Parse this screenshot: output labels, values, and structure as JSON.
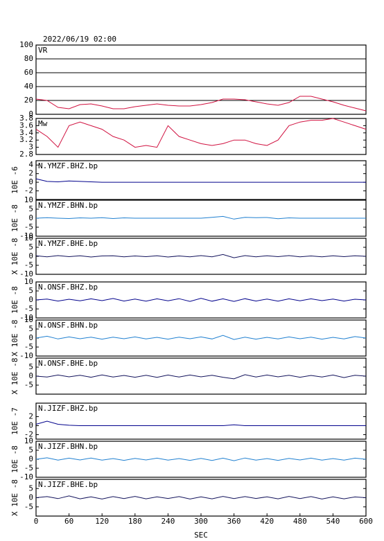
{
  "chart_data": [
    {
      "type": "line",
      "title": "2022/06/19 02:00",
      "xlim": [
        0,
        600
      ],
      "ylim": [
        0,
        100
      ],
      "yticks": [
        0,
        20,
        40,
        60,
        80,
        100
      ],
      "grid": true,
      "x": [
        0,
        20,
        40,
        60,
        80,
        100,
        120,
        140,
        160,
        180,
        200,
        220,
        240,
        260,
        280,
        300,
        320,
        340,
        360,
        380,
        400,
        420,
        440,
        460,
        480,
        500,
        520,
        540,
        560,
        580,
        600
      ],
      "series": [
        {
          "name": "VR",
          "color": "#d0103f",
          "values": [
            22,
            20,
            10,
            8,
            14,
            15,
            12,
            8,
            8,
            11,
            13,
            15,
            13,
            12,
            12,
            14,
            17,
            22,
            22,
            21,
            18,
            15,
            13,
            17,
            26,
            26,
            22,
            18,
            13,
            9,
            5
          ]
        }
      ]
    },
    {
      "type": "line",
      "xlim": [
        0,
        600
      ],
      "ylim": [
        2.8,
        3.8
      ],
      "yticks": [
        2.8,
        3.0,
        3.2,
        3.4,
        3.6,
        3.8
      ],
      "grid": false,
      "x": [
        0,
        20,
        40,
        60,
        80,
        100,
        120,
        140,
        160,
        180,
        200,
        220,
        240,
        260,
        280,
        300,
        320,
        340,
        360,
        380,
        400,
        420,
        440,
        460,
        480,
        500,
        520,
        540,
        560,
        580,
        600
      ],
      "series": [
        {
          "name": "Mw",
          "color": "#d0103f",
          "values": [
            3.5,
            3.3,
            3.0,
            3.6,
            3.7,
            3.6,
            3.5,
            3.3,
            3.2,
            3.0,
            3.05,
            3.0,
            3.6,
            3.3,
            3.2,
            3.1,
            3.05,
            3.1,
            3.2,
            3.2,
            3.1,
            3.05,
            3.2,
            3.6,
            3.7,
            3.75,
            3.75,
            3.8,
            3.7,
            3.6,
            3.5
          ]
        }
      ]
    },
    {
      "type": "line",
      "ylabel": "10E -6",
      "xlim": [
        0,
        600
      ],
      "ylim": [
        -4,
        5
      ],
      "yticks": [
        -2,
        0,
        2,
        4
      ],
      "grid": false,
      "x": [
        0,
        20,
        40,
        60,
        80,
        100,
        120,
        140,
        160,
        180,
        200,
        220,
        240,
        260,
        280,
        300,
        320,
        340,
        360,
        380,
        400,
        420,
        440,
        460,
        480,
        500,
        520,
        540,
        560,
        580,
        600
      ],
      "series": [
        {
          "name": "N.YMZF.BHZ.bp",
          "color": "#00008b",
          "values": [
            0.8,
            0.2,
            0.1,
            0.3,
            0.2,
            0.1,
            0,
            0,
            0,
            0,
            0,
            0,
            0,
            0,
            0,
            0,
            0,
            0,
            0,
            0,
            0,
            0,
            0,
            0,
            0,
            0,
            0,
            0,
            0,
            0,
            0
          ]
        }
      ]
    },
    {
      "type": "line",
      "ylabel": "10E -8",
      "xlim": [
        0,
        600
      ],
      "ylim": [
        -10,
        10
      ],
      "yticks": [
        -10,
        -5,
        0,
        5,
        10
      ],
      "grid": false,
      "x": [
        0,
        20,
        40,
        60,
        80,
        100,
        120,
        140,
        160,
        180,
        200,
        220,
        240,
        260,
        280,
        300,
        320,
        340,
        360,
        380,
        400,
        420,
        440,
        460,
        480,
        500,
        520,
        540,
        560,
        580,
        600
      ],
      "series": [
        {
          "name": "N.YMZF.BHN.bp",
          "color": "#1e7fd0",
          "values": [
            0,
            0.3,
            0,
            -0.2,
            0.2,
            0,
            0.3,
            -0.2,
            0.2,
            0,
            0,
            0,
            0,
            0,
            0,
            0,
            0.5,
            1,
            -0.5,
            0.5,
            0.3,
            0.4,
            -0.3,
            0.2,
            0,
            0,
            0,
            0,
            0,
            0,
            0
          ]
        }
      ]
    },
    {
      "type": "line",
      "ylabel": "X 10E -8",
      "xlim": [
        0,
        600
      ],
      "ylim": [
        -10,
        10
      ],
      "yticks": [
        -10,
        -5,
        0,
        5,
        10
      ],
      "grid": false,
      "x": [
        0,
        20,
        40,
        60,
        80,
        100,
        120,
        140,
        160,
        180,
        200,
        220,
        240,
        260,
        280,
        300,
        320,
        340,
        360,
        380,
        400,
        420,
        440,
        460,
        480,
        500,
        520,
        540,
        560,
        580,
        600
      ],
      "series": [
        {
          "name": "N.YMZF.BHE.bp",
          "color": "#10105a",
          "values": [
            0.3,
            -0.3,
            0.4,
            -0.2,
            0.3,
            -0.4,
            0.2,
            0.3,
            -0.3,
            0.2,
            -0.2,
            0.3,
            -0.4,
            0.2,
            -0.3,
            0.4,
            -0.3,
            1,
            -0.8,
            0.4,
            -0.3,
            0.3,
            -0.2,
            0.4,
            -0.3,
            0.2,
            -0.3,
            0.3,
            -0.2,
            0.3,
            0
          ]
        }
      ]
    },
    {
      "type": "line",
      "ylabel": "10E -8",
      "xlim": [
        0,
        600
      ],
      "ylim": [
        -10,
        10
      ],
      "yticks": [
        -10,
        -5,
        0,
        5,
        10
      ],
      "grid": false,
      "x": [
        0,
        20,
        40,
        60,
        80,
        100,
        120,
        140,
        160,
        180,
        200,
        220,
        240,
        260,
        280,
        300,
        320,
        340,
        360,
        380,
        400,
        420,
        440,
        460,
        480,
        500,
        520,
        540,
        560,
        580,
        600
      ],
      "series": [
        {
          "name": "N.ONSF.BHZ.bp",
          "color": "#00008b",
          "values": [
            0,
            0.5,
            -0.6,
            0.4,
            -0.5,
            0.6,
            -0.4,
            0.8,
            -0.6,
            0.5,
            -0.7,
            0.6,
            -0.5,
            0.7,
            -0.8,
            0.9,
            -0.7,
            0.6,
            -0.8,
            0.7,
            -0.6,
            0.5,
            -0.7,
            0.6,
            -0.5,
            0.6,
            -0.4,
            0.5,
            -0.6,
            0.4,
            0
          ]
        }
      ]
    },
    {
      "type": "line",
      "ylabel": "X 10E -8",
      "xlim": [
        0,
        600
      ],
      "ylim": [
        -10,
        10
      ],
      "yticks": [
        -10,
        -5,
        0,
        5,
        10
      ],
      "grid": false,
      "x": [
        0,
        20,
        40,
        60,
        80,
        100,
        120,
        140,
        160,
        180,
        200,
        220,
        240,
        260,
        280,
        300,
        320,
        340,
        360,
        380,
        400,
        420,
        440,
        460,
        480,
        500,
        520,
        540,
        560,
        580,
        600
      ],
      "series": [
        {
          "name": "N.ONSF.BHN.bp",
          "color": "#1e7fd0",
          "values": [
            0,
            1,
            -0.5,
            0.6,
            -0.4,
            0.5,
            -0.6,
            0.5,
            -0.4,
            0.6,
            -0.5,
            0.4,
            -0.6,
            0.5,
            -0.4,
            0.6,
            -0.5,
            1.5,
            -0.8,
            0.5,
            -0.6,
            0.4,
            -0.5,
            0.6,
            -0.4,
            0.5,
            -0.6,
            0.4,
            -0.5,
            0.8,
            0
          ]
        }
      ]
    },
    {
      "type": "line",
      "ylabel": "X 10E -8",
      "xlim": [
        0,
        600
      ],
      "ylim": [
        -10,
        10
      ],
      "yticks": [
        -5,
        0,
        5
      ],
      "grid": false,
      "x": [
        0,
        20,
        40,
        60,
        80,
        100,
        120,
        140,
        160,
        180,
        200,
        220,
        240,
        260,
        280,
        300,
        320,
        340,
        360,
        380,
        400,
        420,
        440,
        460,
        480,
        500,
        520,
        540,
        560,
        580,
        600
      ],
      "series": [
        {
          "name": "N.ONSF.BHE.bp",
          "color": "#10105a",
          "values": [
            0,
            -0.5,
            0.6,
            -0.4,
            0.5,
            -0.6,
            0.7,
            -0.5,
            0.4,
            -0.6,
            0.5,
            -0.7,
            0.6,
            -0.5,
            0.6,
            -0.4,
            0.5,
            -0.6,
            -1.5,
            0.8,
            -0.5,
            0.6,
            -0.4,
            0.5,
            -0.6,
            0.4,
            -0.5,
            0.6,
            -0.8,
            0.5,
            0
          ]
        }
      ]
    },
    {
      "type": "line",
      "ylabel": "10E -7",
      "xlim": [
        0,
        600
      ],
      "ylim": [
        -3,
        5
      ],
      "yticks": [
        -2,
        0,
        2
      ],
      "grid": false,
      "x": [
        0,
        20,
        40,
        60,
        80,
        100,
        120,
        140,
        160,
        180,
        200,
        220,
        240,
        260,
        280,
        300,
        320,
        340,
        360,
        380,
        400,
        420,
        440,
        460,
        480,
        500,
        520,
        540,
        560,
        580,
        600
      ],
      "series": [
        {
          "name": "N.JIZF.BHZ.bp",
          "color": "#00008b",
          "values": [
            0.3,
            1,
            0.3,
            0.1,
            0,
            0,
            0,
            0,
            0,
            0,
            0,
            0,
            0,
            0,
            0,
            0,
            0,
            0,
            0.2,
            0,
            0,
            0,
            0,
            0,
            0,
            0,
            0,
            0,
            0,
            0,
            0
          ]
        }
      ]
    },
    {
      "type": "line",
      "ylabel": "10E -8",
      "xlim": [
        0,
        600
      ],
      "ylim": [
        -10,
        10
      ],
      "yticks": [
        -10,
        -5,
        0,
        5,
        10
      ],
      "grid": false,
      "x": [
        0,
        20,
        40,
        60,
        80,
        100,
        120,
        140,
        160,
        180,
        200,
        220,
        240,
        260,
        280,
        300,
        320,
        340,
        360,
        380,
        400,
        420,
        440,
        460,
        480,
        500,
        520,
        540,
        560,
        580,
        600
      ],
      "series": [
        {
          "name": "N.JIZF.BHN.bp",
          "color": "#1e7fd0",
          "values": [
            0,
            0.8,
            -0.5,
            0.6,
            -0.4,
            0.7,
            -0.5,
            0.4,
            -0.6,
            0.5,
            -0.4,
            0.6,
            -0.5,
            0.4,
            -0.6,
            0.5,
            -0.7,
            0.6,
            -0.8,
            0.7,
            -0.5,
            0.4,
            -0.6,
            0.5,
            -0.4,
            0.6,
            -0.5,
            0.4,
            -0.5,
            0.6,
            0
          ]
        }
      ]
    },
    {
      "type": "line",
      "ylabel": "X 10E -8",
      "xlabel": "SEC",
      "xlim": [
        0,
        600
      ],
      "xticks": [
        0,
        60,
        120,
        180,
        240,
        300,
        360,
        420,
        480,
        540,
        600
      ],
      "ylim": [
        -10,
        10
      ],
      "yticks": [
        -5,
        0,
        5
      ],
      "grid": false,
      "x": [
        0,
        20,
        40,
        60,
        80,
        100,
        120,
        140,
        160,
        180,
        200,
        220,
        240,
        260,
        280,
        300,
        320,
        340,
        360,
        380,
        400,
        420,
        440,
        460,
        480,
        500,
        520,
        540,
        560,
        580,
        600
      ],
      "series": [
        {
          "name": "N.JIZF.BHE.bp",
          "color": "#10105a",
          "values": [
            0,
            0.6,
            -0.5,
            1,
            -0.6,
            0.5,
            -0.7,
            0.6,
            -0.5,
            0.7,
            -0.6,
            0.5,
            -0.4,
            0.6,
            -0.7,
            0.5,
            -0.6,
            0.7,
            -0.5,
            0.6,
            -0.4,
            0.5,
            -0.6,
            0.7,
            -0.5,
            0.6,
            -0.7,
            0.5,
            -0.6,
            0.4,
            0
          ]
        }
      ]
    }
  ]
}
